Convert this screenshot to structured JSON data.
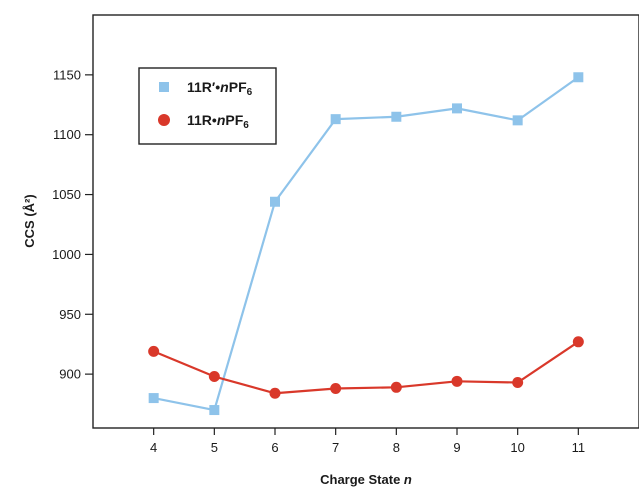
{
  "chart_data": {
    "type": "line",
    "x": [
      4,
      5,
      6,
      7,
      8,
      9,
      10,
      11
    ],
    "xlabel_main": "Charge State ",
    "xlabel_italic": "n",
    "ylabel": "CCS (Å²)",
    "ylim": [
      855,
      1200
    ],
    "yticks": [
      900,
      950,
      1000,
      1050,
      1100,
      1150
    ],
    "xlim": [
      3,
      12
    ],
    "grid": false,
    "legend_position": "top-left",
    "series": [
      {
        "name_parts": {
          "prefix": "11R′•",
          "italic": "n",
          "mid": "PF",
          "sub": "6"
        },
        "marker": "square",
        "color": "#8ec3ea",
        "values": [
          880,
          870,
          1044,
          1113,
          1115,
          1122,
          1112,
          1148
        ]
      },
      {
        "name_parts": {
          "prefix": "11R•",
          "italic": "n",
          "mid": "PF",
          "sub": "6"
        },
        "marker": "circle",
        "color": "#d9382a",
        "values": [
          919,
          898,
          884,
          888,
          889,
          894,
          893,
          927
        ]
      }
    ]
  }
}
